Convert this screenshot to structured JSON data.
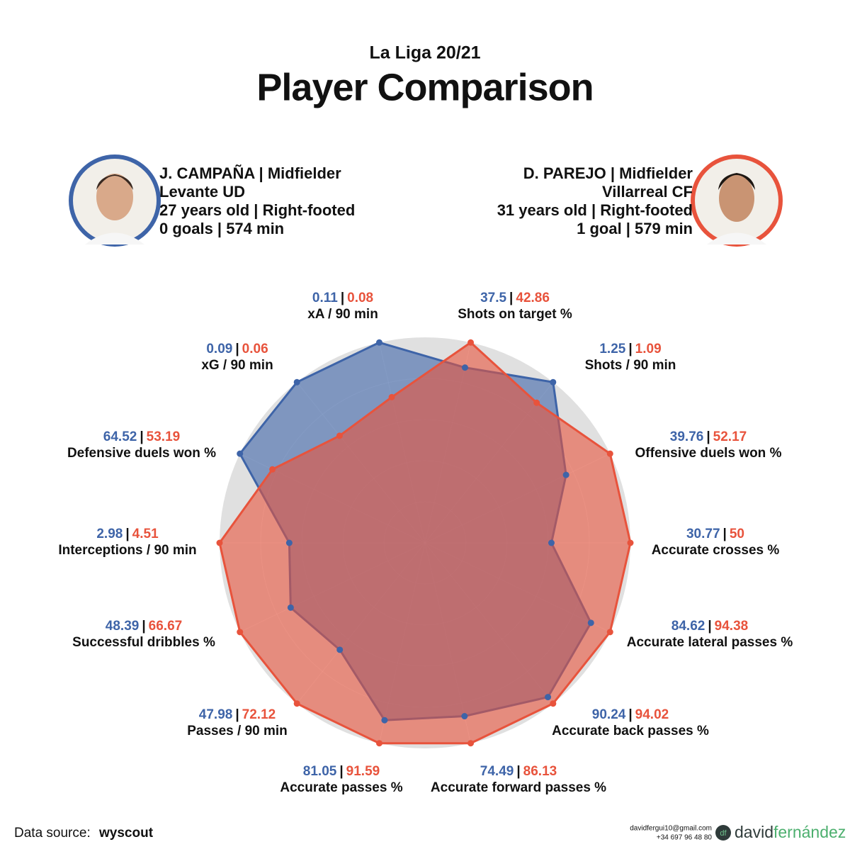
{
  "subtitle": "La Liga 20/21",
  "title": "Player Comparison",
  "players": [
    {
      "team": "Levante UD",
      "age": "27 years old | Right-footed",
      "stats": "0 goals | 574 min"
    },
    {
      "team": "Villarreal CF",
      "age": "31 years old | Right-footed",
      "stats": "1 goal | 579 min"
    }
  ],
  "chart_data": {
    "type": "radar",
    "categories": [
      "Shots on target %",
      "Shots / 90 min",
      "Offensive duels won %",
      "Accurate crosses %",
      "Accurate lateral passes %",
      "Accurate back passes %",
      "Accurate forward passes %",
      "Accurate passes %",
      "Passes / 90 min",
      "Successful dribbles %",
      "Interceptions / 90 min",
      "Defensive duels won %",
      "xG / 90 min",
      "xA / 90 min"
    ],
    "value_separator": "|",
    "series": [
      {
        "name": "J. CAMPAÑA | Midfielder",
        "color": "#3e64a8",
        "values": [
          37.5,
          1.25,
          39.76,
          30.77,
          84.62,
          90.24,
          74.49,
          81.05,
          47.98,
          48.39,
          2.98,
          64.52,
          0.09,
          0.11
        ]
      },
      {
        "name": "D. PAREJO | Midfielder",
        "color": "#e8533c",
        "values": [
          42.86,
          1.09,
          52.17,
          50,
          94.38,
          94.02,
          86.13,
          91.59,
          72.12,
          66.67,
          4.51,
          53.19,
          0.06,
          0.08
        ]
      }
    ]
  },
  "footer": {
    "source_label": "Data source:",
    "source": "wyscout",
    "email": "davidfergui10@gmail.com",
    "phone": "+34 697 96 48 80",
    "logo": "df",
    "brand_first": "david",
    "brand_second": "fernández"
  }
}
